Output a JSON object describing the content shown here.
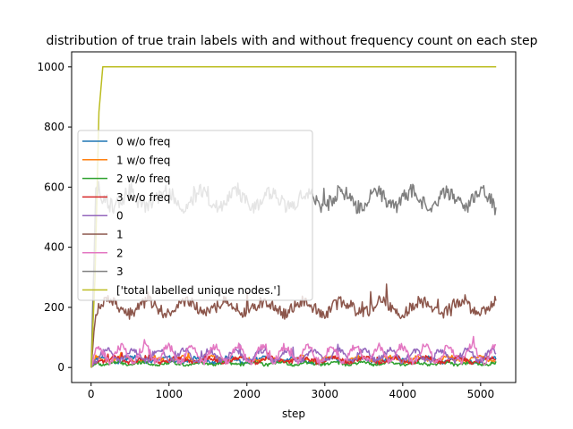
{
  "chart_data": {
    "type": "line",
    "title": "distribution of true train labels with and without frequency count on each step",
    "xlabel": "step",
    "ylabel": "",
    "xlim": [
      -250,
      5450
    ],
    "ylim": [
      -50,
      1050
    ],
    "xticks": [
      0,
      1000,
      2000,
      3000,
      4000,
      5000
    ],
    "yticks": [
      0,
      200,
      400,
      600,
      800,
      1000
    ],
    "grid": false,
    "legend_position": "center-left",
    "x_max": 5200,
    "series": [
      {
        "name": "0 w/o freq",
        "color": "#1f77b4",
        "mean": 25,
        "amp": 8,
        "noise": 6,
        "period": 420
      },
      {
        "name": "1 w/o freq",
        "color": "#ff7f0e",
        "mean": 28,
        "amp": 8,
        "noise": 6,
        "period": 380
      },
      {
        "name": "2 w/o freq",
        "color": "#2ca02c",
        "mean": 13,
        "amp": 4,
        "noise": 5,
        "period": 350
      },
      {
        "name": "3 w/o freq",
        "color": "#d62728",
        "mean": 25,
        "amp": 8,
        "noise": 7,
        "period": 400
      },
      {
        "name": "0",
        "color": "#9467bd",
        "mean": 40,
        "amp": 18,
        "noise": 10,
        "period": 330
      },
      {
        "name": "1",
        "color": "#8c564b",
        "mean": 200,
        "amp": 20,
        "noise": 20,
        "period": 500
      },
      {
        "name": "2",
        "color": "#e377c2",
        "mean": 45,
        "amp": 25,
        "noise": 12,
        "period": 300
      },
      {
        "name": "3",
        "color": "#7f7f7f",
        "mean": 560,
        "amp": 25,
        "noise": 25,
        "period": 450
      },
      {
        "name": "['total labelled unique nodes.']",
        "color": "#bcbd22",
        "shape": "saturation",
        "points": [
          [
            0,
            0
          ],
          [
            50,
            300
          ],
          [
            100,
            850
          ],
          [
            150,
            1000
          ],
          [
            5200,
            1000
          ]
        ]
      }
    ]
  }
}
